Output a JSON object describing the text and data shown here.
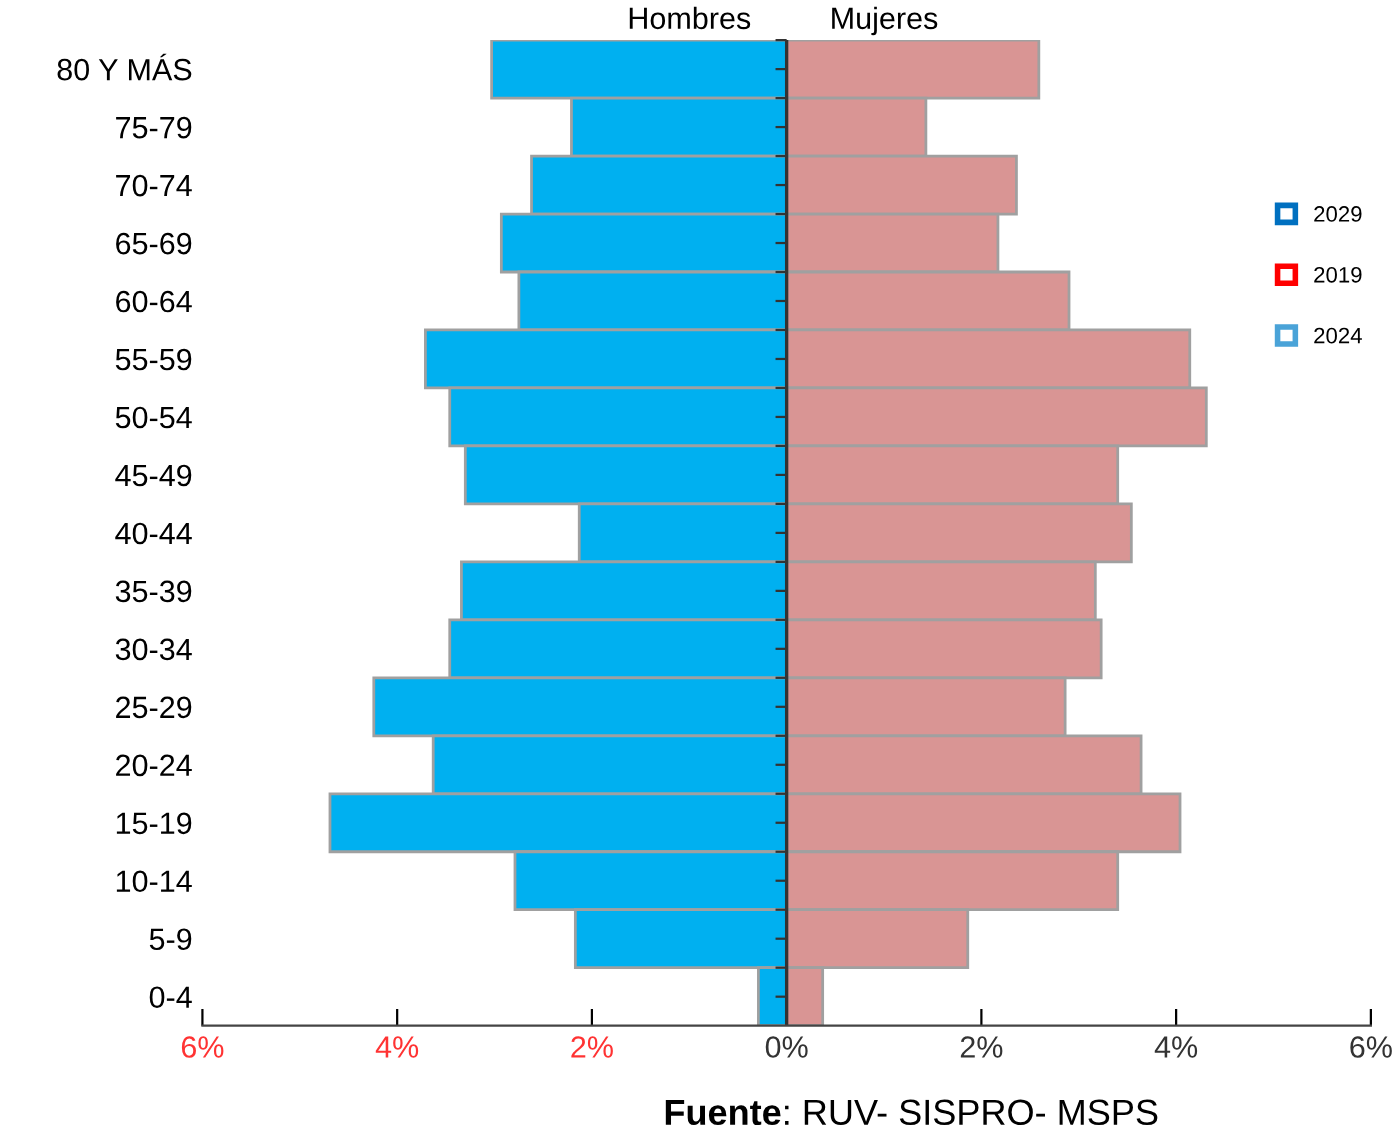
{
  "chart_data": {
    "type": "bar",
    "orientation": "horizontal",
    "categories": [
      "80 Y MÁS",
      "75-79",
      "70-74",
      "65-69",
      "60-64",
      "55-59",
      "50-54",
      "45-49",
      "40-44",
      "35-39",
      "30-34",
      "25-29",
      "20-24",
      "15-19",
      "10-14",
      "5-9",
      "0-4"
    ],
    "series": [
      {
        "name": "Hombres",
        "color": "#00b0f0",
        "values": [
          -3.03,
          -2.21,
          -2.62,
          -2.93,
          -2.75,
          -3.71,
          -3.46,
          -3.3,
          -2.13,
          -3.34,
          -3.46,
          -4.24,
          -3.63,
          -4.69,
          -2.79,
          -2.17,
          -0.29
        ]
      },
      {
        "name": "Mujeres",
        "color": "#d99594",
        "values": [
          2.59,
          1.43,
          2.36,
          2.17,
          2.9,
          4.14,
          4.31,
          3.4,
          3.54,
          3.17,
          3.23,
          2.86,
          3.64,
          4.04,
          3.4,
          1.86,
          0.37
        ]
      },
      {
        "name": "2029",
        "color": "#0070c0",
        "values": [
          null,
          null,
          null,
          null,
          null,
          null,
          null,
          null,
          null,
          null,
          null,
          null,
          null,
          null,
          null,
          null,
          null
        ]
      },
      {
        "name": "2019",
        "color": "#ff0000",
        "values": [
          null,
          null,
          null,
          null,
          null,
          null,
          null,
          null,
          null,
          null,
          null,
          null,
          null,
          null,
          null,
          null,
          null
        ]
      },
      {
        "name": "2024",
        "color": "#4aa3d8",
        "values": [
          null,
          null,
          null,
          null,
          null,
          null,
          null,
          null,
          null,
          null,
          null,
          null,
          null,
          null,
          null,
          null,
          null
        ]
      }
    ],
    "xlim": [
      -6,
      6
    ],
    "xticks": [
      {
        "value": -6,
        "label": "6%"
      },
      {
        "value": -4,
        "label": "4%"
      },
      {
        "value": -2,
        "label": "2%"
      },
      {
        "value": 0,
        "label": "0%"
      },
      {
        "value": 2,
        "label": "2%"
      },
      {
        "value": 4,
        "label": "4%"
      },
      {
        "value": 6,
        "label": "6%"
      }
    ],
    "legend": "right",
    "grid": false,
    "stacked": true,
    "ref_lines": [
      {
        "axis": "x",
        "value": 0,
        "color": "#333333"
      }
    ],
    "annotations": [
      "Fuente: RUV- SISPRO- MSPS"
    ]
  }
}
